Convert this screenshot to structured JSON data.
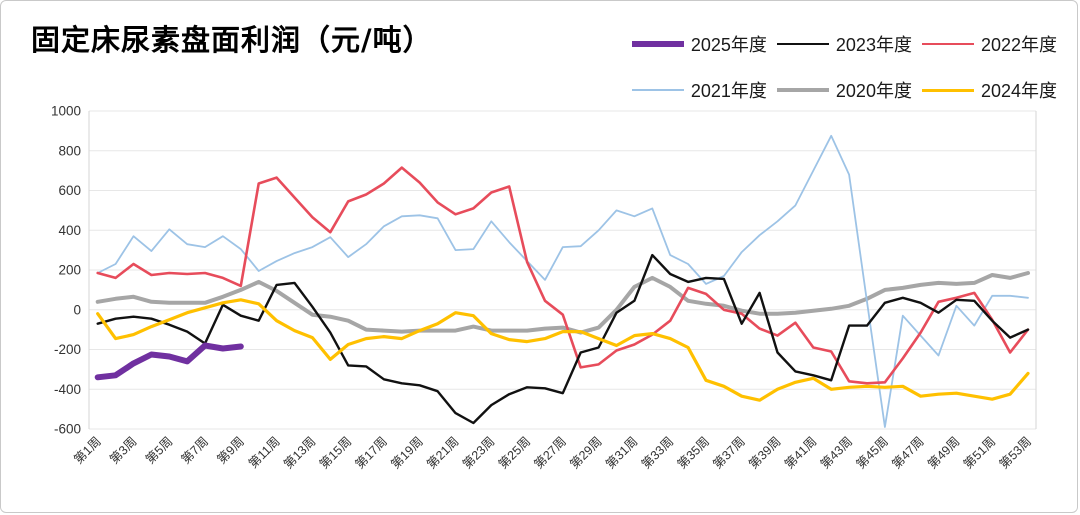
{
  "chart_data": {
    "type": "line",
    "title": "固定床尿素盘面利润（元/吨）",
    "legend_position": "top-right",
    "grid": "horizontal-only",
    "x_axis": {
      "unit": "周",
      "num_weeks": 53,
      "tick_labels": [
        "第1周",
        "第3周",
        "第5周",
        "第7周",
        "第9周",
        "第11周",
        "第13周",
        "第15周",
        "第17周",
        "第19周",
        "第21周",
        "第23周",
        "第25周",
        "第27周",
        "第29周",
        "第31周",
        "第33周",
        "第35周",
        "第37周",
        "第39周",
        "第41周",
        "第43周",
        "第45周",
        "第47周",
        "第49周",
        "第51周",
        "第53周"
      ]
    },
    "y_axis": {
      "min": -600,
      "max": 1000,
      "step": 200,
      "tick_labels": [
        "1000",
        "800",
        "600",
        "400",
        "200",
        "0",
        "-200",
        "-400",
        "-600"
      ]
    },
    "colors": {
      "purple": "#7030A0",
      "black": "#111111",
      "red": "#E74C5B",
      "blue": "#9DC3E6",
      "gray": "#A6A6A6",
      "yellow": "#FFC000",
      "gridline": "#E7E7E7",
      "plot_border": "#D6D6D6",
      "axis_text": "#333333"
    },
    "series": [
      {
        "name": "2025年度",
        "color": "#7030A0",
        "line_width": 6,
        "values": [
          -340,
          -330,
          -270,
          -225,
          -235,
          -260,
          -180,
          -195,
          -185
        ]
      },
      {
        "name": "2023年度",
        "color": "#111111",
        "line_width": 2.4,
        "values": [
          -70,
          -45,
          -35,
          -45,
          -75,
          -110,
          -170,
          25,
          -30,
          -55,
          125,
          135,
          15,
          -115,
          -280,
          -285,
          -350,
          -370,
          -380,
          -410,
          -520,
          -570,
          -480,
          -425,
          -390,
          -395,
          -420,
          -215,
          -190,
          -15,
          45,
          275,
          180,
          140,
          160,
          155,
          -70,
          85,
          -215,
          -310,
          -330,
          -355,
          -80,
          -80,
          35,
          60,
          35,
          -15,
          50,
          45,
          -55,
          -140,
          -100
        ]
      },
      {
        "name": "2022年度",
        "color": "#E74C5B",
        "line_width": 2.6,
        "values": [
          185,
          160,
          230,
          175,
          185,
          180,
          185,
          160,
          120,
          635,
          665,
          565,
          465,
          390,
          545,
          580,
          635,
          715,
          640,
          540,
          480,
          510,
          590,
          620,
          240,
          45,
          -25,
          -290,
          -275,
          -205,
          -175,
          -125,
          -55,
          110,
          80,
          0,
          -20,
          -95,
          -130,
          -65,
          -190,
          -210,
          -360,
          -370,
          -365,
          -245,
          -115,
          40,
          60,
          85,
          -50,
          -215,
          -100
        ]
      },
      {
        "name": "2021年度",
        "color": "#9DC3E6",
        "line_width": 1.8,
        "values": [
          185,
          230,
          370,
          295,
          405,
          330,
          315,
          370,
          305,
          195,
          245,
          285,
          315,
          365,
          265,
          330,
          420,
          470,
          475,
          460,
          300,
          305,
          445,
          340,
          245,
          150,
          315,
          320,
          400,
          500,
          470,
          510,
          275,
          230,
          130,
          170,
          290,
          375,
          445,
          525,
          700,
          875,
          680,
          40,
          -590,
          -30,
          -130,
          -230,
          20,
          -80,
          70,
          70,
          60
        ]
      },
      {
        "name": "2020年度",
        "color": "#A6A6A6",
        "line_width": 4,
        "values": [
          40,
          55,
          65,
          40,
          35,
          35,
          35,
          65,
          100,
          140,
          95,
          35,
          -25,
          -35,
          -55,
          -100,
          -105,
          -110,
          -105,
          -105,
          -105,
          -85,
          -105,
          -105,
          -105,
          -95,
          -90,
          -115,
          -90,
          0,
          115,
          160,
          115,
          45,
          30,
          20,
          -5,
          -20,
          -20,
          -15,
          -5,
          5,
          20,
          55,
          100,
          110,
          125,
          135,
          130,
          135,
          175,
          160,
          185
        ]
      },
      {
        "name": "2024年度",
        "color": "#FFC000",
        "line_width": 3.2,
        "values": [
          -20,
          -145,
          -125,
          -85,
          -50,
          -15,
          10,
          35,
          50,
          30,
          -55,
          -105,
          -140,
          -250,
          -175,
          -145,
          -135,
          -145,
          -105,
          -70,
          -15,
          -30,
          -120,
          -150,
          -160,
          -145,
          -110,
          -110,
          -145,
          -180,
          -130,
          -120,
          -145,
          -190,
          -355,
          -385,
          -435,
          -455,
          -400,
          -365,
          -345,
          -400,
          -390,
          -385,
          -390,
          -385,
          -435,
          -425,
          -420,
          -435,
          -450,
          -425,
          -320
        ]
      }
    ]
  }
}
